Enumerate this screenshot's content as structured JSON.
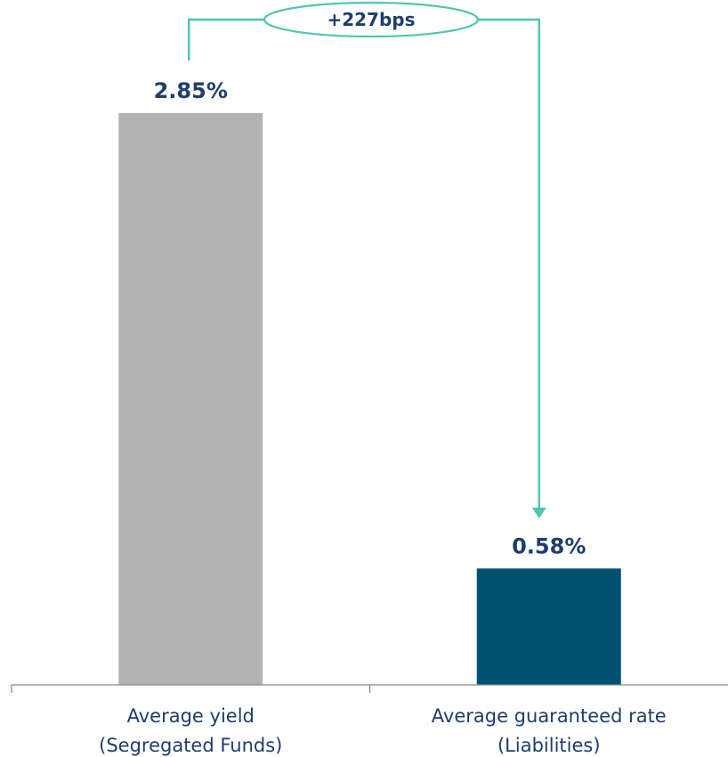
{
  "chart_data": {
    "type": "bar",
    "categories": [
      [
        "Average yield",
        "(Segregated Funds)"
      ],
      [
        "Average guaranteed rate",
        "(Liabilities)"
      ]
    ],
    "values": [
      2.85,
      0.58
    ],
    "value_labels": [
      "2.85%",
      "0.58%"
    ],
    "ylim": [
      0,
      2.85
    ],
    "grid": false,
    "bar_colors": [
      "#b3b3b3",
      "#005070"
    ],
    "annotation": {
      "text": "+227bps",
      "from_category": 0,
      "to_category": 1,
      "color": "#4fc6b0"
    },
    "colors": {
      "value_text": "#1f3d6e",
      "category_text": "#1f3d6e",
      "axis": "#888888"
    }
  }
}
